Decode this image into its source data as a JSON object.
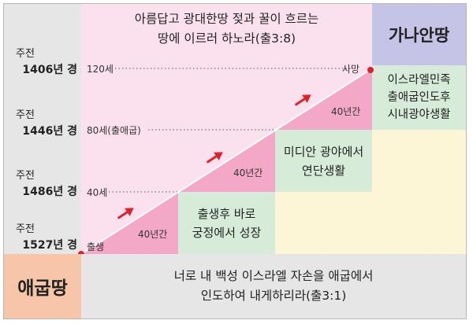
{
  "top_quote": {
    "line1": "아름답고 광대한땅 젖과 꿀이 흐르는",
    "line2": "땅에 이르러 하노라(출3:8)"
  },
  "canaan_label": "가나안땅",
  "egypt_label": "애굽땅",
  "bottom_quote": {
    "line1": "너로 내 백성 이스라엘 자손을 애굽에서",
    "line2": "인도하여 내게하리라(출3:1)"
  },
  "eras": [
    {
      "prefix": "주전",
      "year": "1406년 경"
    },
    {
      "prefix": "주전",
      "year": "1446년 경"
    },
    {
      "prefix": "주전",
      "year": "1486년 경"
    },
    {
      "prefix": "주전",
      "year": "1527년 경"
    }
  ],
  "age_marks": {
    "age120": "120세",
    "age80": "80세(출애굽)",
    "age40": "40세",
    "birth": "출생",
    "death": "사망"
  },
  "stages": [
    {
      "duration": "40년간",
      "caption": {
        "line1": "출생후 바로",
        "line2": "궁정에서 성장"
      }
    },
    {
      "duration": "40년간",
      "caption": {
        "line1": "미디안 광야에서",
        "line2": "연단생활"
      }
    },
    {
      "duration": "40년간",
      "caption": {
        "line1": "이스라엘민족",
        "line2": "출애굽인도후",
        "line3": "시내광야생활"
      }
    }
  ],
  "colors": {
    "pink_triangle": "#f3a8c8",
    "light_pink": "#fbe0ee",
    "green": "#d6ebd8",
    "cream": "#fdf6d6",
    "gray": "#e6e6e6",
    "lavender": "#c6c4e6",
    "peach": "#f7c5a8",
    "arrow_red": "#e0202a",
    "point_red": "#e02030"
  }
}
